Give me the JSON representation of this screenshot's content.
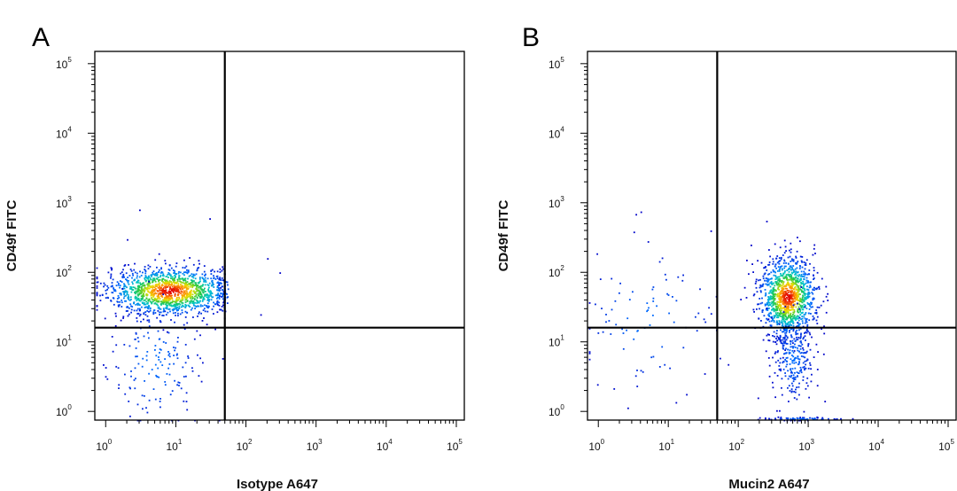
{
  "chart_data": [
    {
      "type": "scatter",
      "panel_label": "A",
      "xlabel": "Isotype A647",
      "ylabel": "CD49f FITC",
      "x_scale": "log",
      "y_scale": "log",
      "xlim": [
        0.7,
        130000
      ],
      "ylim": [
        0.75,
        150000
      ],
      "x_ticks": [
        {
          "base": "10",
          "exp": "0"
        },
        {
          "base": "10",
          "exp": "1"
        },
        {
          "base": "10",
          "exp": "2"
        },
        {
          "base": "10",
          "exp": "3"
        },
        {
          "base": "10",
          "exp": "4"
        },
        {
          "base": "10",
          "exp": "5"
        }
      ],
      "y_ticks": [
        {
          "base": "10",
          "exp": "0"
        },
        {
          "base": "10",
          "exp": "1"
        },
        {
          "base": "10",
          "exp": "2"
        },
        {
          "base": "10",
          "exp": "3"
        },
        {
          "base": "10",
          "exp": "4"
        },
        {
          "base": "10",
          "exp": "5"
        }
      ],
      "gate": {
        "x": 50,
        "y": 16
      },
      "populations": [
        {
          "center_x": 8,
          "center_y": 55,
          "spread_x_decades": 0.45,
          "spread_y_decades": 0.17,
          "count": 1400
        },
        {
          "center_x": 5,
          "center_y": 5,
          "spread_x_decades": 0.35,
          "spread_y_decades": 0.5,
          "count": 160
        }
      ],
      "outlier_points": [
        [
          200,
          160
        ],
        [
          300,
          100
        ],
        [
          160,
          25
        ],
        [
          3,
          800
        ],
        [
          30,
          600
        ],
        [
          2,
          300
        ]
      ],
      "grid": false,
      "density_coloring": "blue-green-yellow-red"
    },
    {
      "type": "scatter",
      "panel_label": "B",
      "xlabel": "Mucin2 A647",
      "ylabel": "CD49f FITC",
      "x_scale": "log",
      "y_scale": "log",
      "xlim": [
        0.7,
        130000
      ],
      "ylim": [
        0.75,
        150000
      ],
      "x_ticks": [
        {
          "base": "10",
          "exp": "0"
        },
        {
          "base": "10",
          "exp": "1"
        },
        {
          "base": "10",
          "exp": "2"
        },
        {
          "base": "10",
          "exp": "3"
        },
        {
          "base": "10",
          "exp": "4"
        },
        {
          "base": "10",
          "exp": "5"
        }
      ],
      "y_ticks": [
        {
          "base": "10",
          "exp": "0"
        },
        {
          "base": "10",
          "exp": "1"
        },
        {
          "base": "10",
          "exp": "2"
        },
        {
          "base": "10",
          "exp": "3"
        },
        {
          "base": "10",
          "exp": "4"
        },
        {
          "base": "10",
          "exp": "5"
        }
      ],
      "gate": {
        "x": 50,
        "y": 16
      },
      "populations": [
        {
          "center_x": 500,
          "center_y": 45,
          "spread_x_decades": 0.2,
          "spread_y_decades": 0.28,
          "count": 1200
        },
        {
          "center_x": 600,
          "center_y": 6,
          "spread_x_decades": 0.15,
          "spread_y_decades": 0.35,
          "count": 260
        },
        {
          "center_x": 5,
          "center_y": 20,
          "spread_x_decades": 0.55,
          "spread_y_decades": 0.55,
          "count": 90
        },
        {
          "center_x": 800,
          "center_y": 0.8,
          "spread_x_decades": 0.3,
          "spread_y_decades": 0.01,
          "count": 70
        }
      ],
      "outlier_points": [
        [
          4,
          750
        ],
        [
          40,
          400
        ],
        [
          150,
          250
        ],
        [
          250,
          550
        ]
      ],
      "grid": false,
      "density_coloring": "blue-green-yellow-red"
    }
  ]
}
